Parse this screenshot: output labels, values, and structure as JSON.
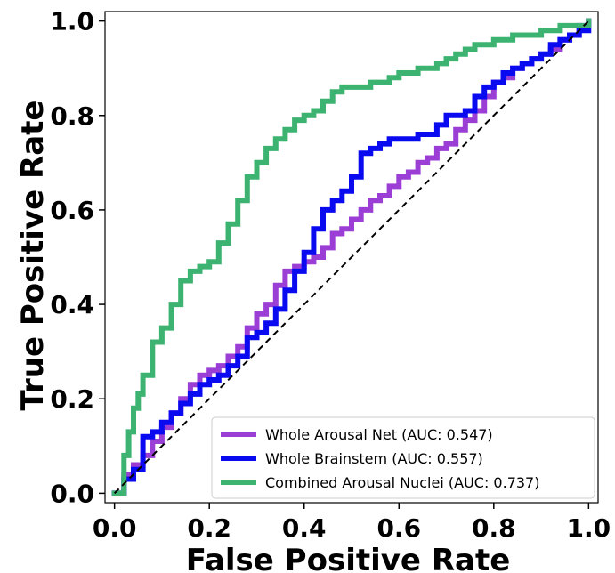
{
  "chart_data": {
    "type": "line",
    "title": "",
    "xlabel": "False Positive Rate",
    "ylabel": "True Positive Rate",
    "xlim": [
      -0.02,
      1.02
    ],
    "ylim": [
      -0.02,
      1.02
    ],
    "xticks": [
      0.0,
      0.2,
      0.4,
      0.6,
      0.8,
      1.0
    ],
    "yticks": [
      0.0,
      0.2,
      0.4,
      0.6,
      0.8,
      1.0
    ],
    "xtick_labels": [
      "0.0",
      "0.2",
      "0.4",
      "0.6",
      "0.8",
      "1.0"
    ],
    "ytick_labels": [
      "0.0",
      "0.2",
      "0.4",
      "0.6",
      "0.8",
      "1.0"
    ],
    "grid": false,
    "legend_position": "lower-right",
    "reference_line": {
      "x": [
        0,
        1
      ],
      "y": [
        0,
        1
      ],
      "style": "dashed",
      "color": "#000000"
    },
    "series": [
      {
        "name": "Whole Arousal Net (AUC: 0.547)",
        "color": "#9b3ed6",
        "x": [
          0,
          0.02,
          0.04,
          0.06,
          0.08,
          0.1,
          0.12,
          0.14,
          0.16,
          0.18,
          0.2,
          0.22,
          0.24,
          0.26,
          0.28,
          0.3,
          0.32,
          0.34,
          0.36,
          0.38,
          0.4,
          0.42,
          0.44,
          0.46,
          0.48,
          0.5,
          0.52,
          0.54,
          0.56,
          0.58,
          0.6,
          0.62,
          0.64,
          0.66,
          0.68,
          0.7,
          0.72,
          0.74,
          0.76,
          0.78,
          0.8,
          0.82,
          0.84,
          0.86,
          0.88,
          0.9,
          0.92,
          0.94,
          0.96,
          0.98,
          1.0
        ],
        "y": [
          0,
          0.04,
          0.06,
          0.08,
          0.11,
          0.14,
          0.17,
          0.2,
          0.23,
          0.25,
          0.26,
          0.27,
          0.29,
          0.31,
          0.35,
          0.38,
          0.4,
          0.44,
          0.47,
          0.48,
          0.49,
          0.5,
          0.52,
          0.55,
          0.56,
          0.58,
          0.6,
          0.62,
          0.63,
          0.65,
          0.67,
          0.68,
          0.7,
          0.71,
          0.73,
          0.74,
          0.77,
          0.79,
          0.81,
          0.84,
          0.87,
          0.88,
          0.9,
          0.91,
          0.92,
          0.93,
          0.94,
          0.96,
          0.97,
          0.99,
          1.0
        ]
      },
      {
        "name": "Whole Brainstem (AUC: 0.557)",
        "color": "#0a0af0",
        "x": [
          0,
          0.02,
          0.04,
          0.05,
          0.06,
          0.08,
          0.1,
          0.12,
          0.14,
          0.16,
          0.18,
          0.2,
          0.22,
          0.24,
          0.26,
          0.28,
          0.3,
          0.32,
          0.34,
          0.36,
          0.38,
          0.4,
          0.42,
          0.44,
          0.46,
          0.48,
          0.5,
          0.52,
          0.54,
          0.56,
          0.58,
          0.6,
          0.62,
          0.64,
          0.66,
          0.68,
          0.7,
          0.72,
          0.74,
          0.76,
          0.78,
          0.8,
          0.82,
          0.84,
          0.86,
          0.88,
          0.9,
          0.92,
          0.94,
          0.96,
          0.98,
          1.0
        ],
        "y": [
          0,
          0.03,
          0.05,
          0.05,
          0.12,
          0.13,
          0.15,
          0.17,
          0.19,
          0.21,
          0.23,
          0.24,
          0.25,
          0.27,
          0.29,
          0.33,
          0.34,
          0.36,
          0.39,
          0.43,
          0.47,
          0.51,
          0.56,
          0.6,
          0.62,
          0.64,
          0.67,
          0.72,
          0.73,
          0.74,
          0.75,
          0.75,
          0.75,
          0.76,
          0.76,
          0.78,
          0.8,
          0.8,
          0.81,
          0.84,
          0.86,
          0.87,
          0.89,
          0.9,
          0.91,
          0.92,
          0.93,
          0.95,
          0.96,
          0.97,
          0.98,
          1.0
        ]
      },
      {
        "name": "Combined Arousal Nuclei (AUC: 0.737)",
        "color": "#3cb371",
        "x": [
          0,
          0.02,
          0.03,
          0.04,
          0.05,
          0.06,
          0.08,
          0.1,
          0.12,
          0.14,
          0.16,
          0.18,
          0.2,
          0.22,
          0.24,
          0.26,
          0.28,
          0.3,
          0.32,
          0.34,
          0.36,
          0.38,
          0.4,
          0.42,
          0.44,
          0.46,
          0.48,
          0.5,
          0.52,
          0.54,
          0.56,
          0.58,
          0.6,
          0.62,
          0.64,
          0.66,
          0.68,
          0.7,
          0.72,
          0.74,
          0.76,
          0.78,
          0.8,
          0.82,
          0.84,
          0.86,
          0.88,
          0.9,
          0.92,
          0.94,
          0.96,
          0.98,
          1.0
        ],
        "y": [
          0,
          0.08,
          0.13,
          0.18,
          0.21,
          0.25,
          0.32,
          0.35,
          0.4,
          0.45,
          0.47,
          0.48,
          0.49,
          0.53,
          0.57,
          0.62,
          0.67,
          0.7,
          0.73,
          0.75,
          0.77,
          0.79,
          0.8,
          0.81,
          0.83,
          0.85,
          0.86,
          0.86,
          0.86,
          0.87,
          0.87,
          0.88,
          0.89,
          0.89,
          0.9,
          0.9,
          0.91,
          0.92,
          0.93,
          0.94,
          0.95,
          0.95,
          0.96,
          0.96,
          0.97,
          0.97,
          0.97,
          0.98,
          0.98,
          0.99,
          0.99,
          0.99,
          1.0
        ]
      }
    ]
  }
}
